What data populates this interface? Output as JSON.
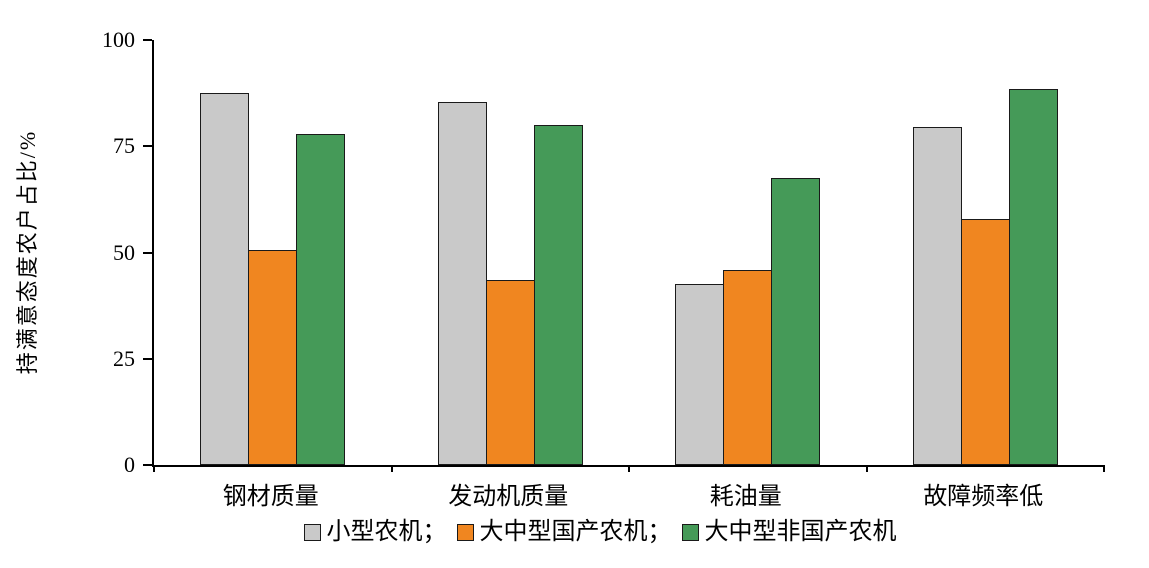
{
  "chart_data": {
    "type": "bar",
    "title": "",
    "xlabel": "",
    "ylabel": "持满意态度农户占比/%",
    "ylim": [
      0,
      100
    ],
    "yticks": [
      0,
      25,
      50,
      75,
      100
    ],
    "grid": false,
    "legend_position": "bottom",
    "categories": [
      "钢材质量",
      "发动机质量",
      "耗油量",
      "故障频率低"
    ],
    "series": [
      {
        "id": "small-machinery",
        "name": "小型农机",
        "color": "#c9c9c9",
        "values": [
          87.5,
          85.5,
          42.5,
          79.5
        ]
      },
      {
        "id": "domestic-large-medium",
        "name": "大中型国产农机",
        "color": "#f08620",
        "values": [
          50.5,
          43.5,
          46.0,
          58.0
        ]
      },
      {
        "id": "non-domestic-large-medium",
        "name": "大中型非国产农机",
        "color": "#459a58",
        "values": [
          78.0,
          80.0,
          67.5,
          88.5
        ]
      }
    ],
    "legend": [
      {
        "id": "small-machinery",
        "label": "小型农机；",
        "color": "#c9c9c9"
      },
      {
        "id": "domestic-large-medium",
        "label": "大中型国产农机；",
        "color": "#f08620"
      },
      {
        "id": "non-domestic-large-medium",
        "label": "大中型非国产农机",
        "color": "#459a58"
      }
    ],
    "axis_color": "#000000",
    "bar_border_color": "#1a1a1a"
  }
}
